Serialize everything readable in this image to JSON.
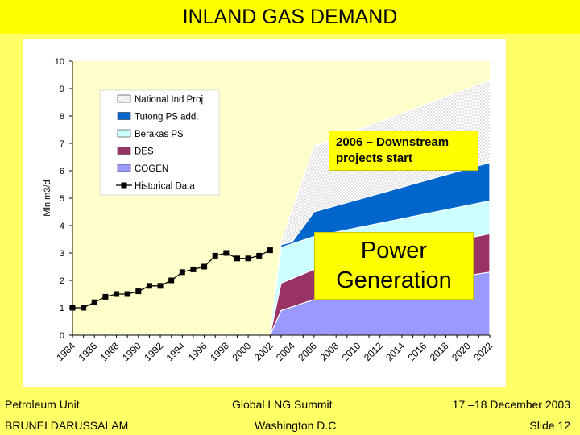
{
  "title": "INLAND GAS DEMAND",
  "footer": {
    "left_top": "Petroleum Unit",
    "left_bottom": "BRUNEI DARUSSALAM",
    "center_top": "Global LNG Summit",
    "center_bottom": "Washington D.C",
    "right_top": "17 –18 December 2003",
    "right_bottom": "Slide 12"
  },
  "callouts": {
    "downstream": "2006 – Downstream projects start",
    "power_line1": "Power",
    "power_line2": "Generation"
  },
  "colors": {
    "background": "#ffff66",
    "plot_background": "#ffffcc",
    "title_bar": "#ffff00",
    "cogen": "#9999ff",
    "des": "#993366",
    "berakas": "#ccffff",
    "tutong": "#0066cc",
    "national": "#e6e6e6"
  },
  "chart_data": {
    "type": "area",
    "title": "",
    "ylabel": "Mln m3/d",
    "xlabel": "",
    "ylim": [
      0,
      10
    ],
    "xlim": [
      1984,
      2022
    ],
    "y_ticks": [
      "0",
      "1",
      "2",
      "3",
      "4",
      "5",
      "6",
      "7",
      "8",
      "9",
      "10"
    ],
    "x_ticks": [
      "1984",
      "1986",
      "1988",
      "1990",
      "1992",
      "1994",
      "1996",
      "1998",
      "2000",
      "2002",
      "2004",
      "2006",
      "2008",
      "2010",
      "2012",
      "2014",
      "2016",
      "2018",
      "2020",
      "2022"
    ],
    "legend_position": "top-left",
    "legend": [
      "National Ind Proj",
      "Tutong PS add.",
      "Berakas PS",
      "DES",
      "COGEN",
      "Historical Data"
    ],
    "stacked_areas": [
      {
        "name": "COGEN",
        "color": "#9999ff",
        "x": [
          2002,
          2003,
          2006,
          2022
        ],
        "y": [
          0,
          0.9,
          1.3,
          2.3
        ]
      },
      {
        "name": "DES",
        "color": "#993366",
        "x": [
          2002,
          2003,
          2006,
          2022
        ],
        "y": [
          0,
          1.9,
          2.4,
          3.7
        ]
      },
      {
        "name": "Berakas PS",
        "color": "#ccffff",
        "x": [
          2002,
          2003,
          2006,
          2022
        ],
        "y": [
          0,
          3.2,
          3.6,
          4.9
        ]
      },
      {
        "name": "Tutong PS add.",
        "color": "#0066cc",
        "x": [
          2002,
          2003,
          2004,
          2006,
          2022
        ],
        "y": [
          0,
          3.3,
          3.4,
          4.5,
          6.3
        ]
      },
      {
        "name": "National Ind Proj",
        "color": "#e6e6e6",
        "x": [
          2002,
          2003,
          2006,
          2022
        ],
        "y": [
          0,
          3.4,
          6.9,
          9.3
        ]
      }
    ],
    "historical": {
      "name": "Historical Data",
      "x": [
        1984,
        1985,
        1986,
        1987,
        1988,
        1989,
        1990,
        1991,
        1992,
        1993,
        1994,
        1995,
        1996,
        1997,
        1998,
        1999,
        2000,
        2001,
        2002
      ],
      "y": [
        1.0,
        1.0,
        1.2,
        1.4,
        1.5,
        1.5,
        1.6,
        1.8,
        1.8,
        2.0,
        2.3,
        2.4,
        2.5,
        2.9,
        3.0,
        2.8,
        2.8,
        2.9,
        3.1
      ]
    }
  }
}
